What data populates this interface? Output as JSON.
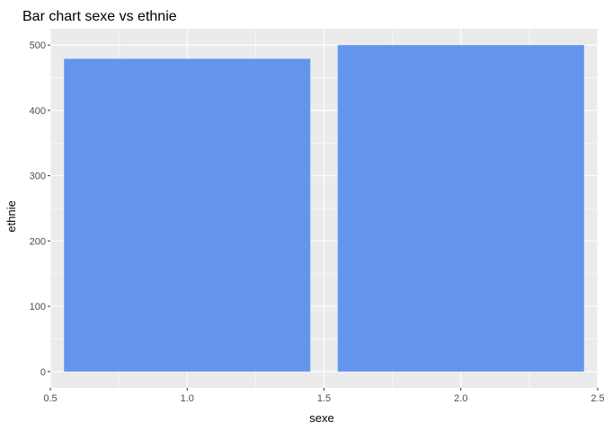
{
  "chart_data": {
    "type": "bar",
    "title": "Bar chart sexe vs ethnie",
    "xlabel": "sexe",
    "ylabel": "ethnie",
    "x": [
      1,
      2
    ],
    "values": [
      479,
      500
    ],
    "bar_width": 0.9,
    "xlim": [
      0.5,
      2.5
    ],
    "ylim": [
      -25,
      525
    ],
    "x_ticks": [
      0.5,
      1.0,
      1.5,
      2.0,
      2.5
    ],
    "x_tick_labels": [
      "0.5",
      "1.0",
      "1.5",
      "2.0",
      "2.5"
    ],
    "y_ticks": [
      0,
      100,
      200,
      300,
      400,
      500
    ],
    "y_tick_labels": [
      "0",
      "100",
      "200",
      "300",
      "400",
      "500"
    ],
    "grid": true,
    "legend": "none",
    "colors": {
      "bar": "#6495ED",
      "panel_background": "#EBEBEB",
      "grid": "#FFFFFF"
    }
  }
}
